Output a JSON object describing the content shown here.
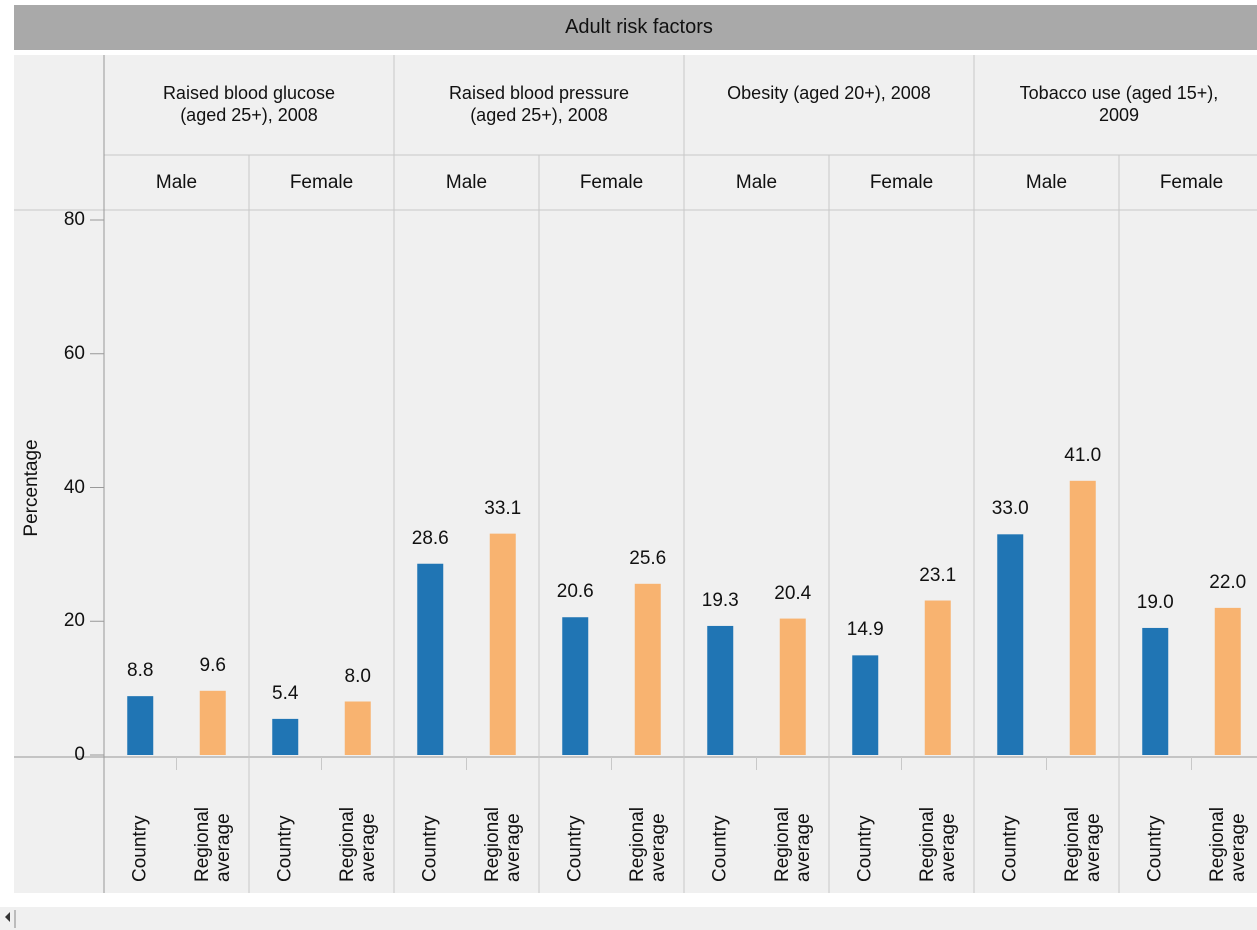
{
  "chart_data": {
    "type": "bar",
    "title": "Adult risk factors",
    "y_label": "Percentage",
    "ylim": [
      0,
      80
    ],
    "yticks": [
      0,
      20,
      40,
      60,
      80
    ],
    "groups": [
      {
        "name": "Raised blood glucose (aged 25+), 2008",
        "subgroups": [
          "Male",
          "Female"
        ]
      },
      {
        "name": "Raised blood pressure (aged 25+), 2008",
        "subgroups": [
          "Male",
          "Female"
        ]
      },
      {
        "name": "Obesity (aged 20+), 2008",
        "subgroups": [
          "Male",
          "Female"
        ]
      },
      {
        "name": "Tobacco use (aged 15+), 2009",
        "subgroups": [
          "Male",
          "Female"
        ]
      }
    ],
    "series": [
      {
        "name": "Country",
        "color": "#2075b4",
        "values": [
          8.8,
          5.4,
          28.6,
          20.6,
          19.3,
          14.9,
          33.0,
          19.0
        ],
        "value_labels": [
          "8.8",
          "5.4",
          "28.6",
          "20.6",
          "19.3",
          "14.9",
          "33.0",
          "19.0"
        ]
      },
      {
        "name": "Regional average",
        "color": "#f8b370",
        "values": [
          9.6,
          8.0,
          33.1,
          25.6,
          20.4,
          23.1,
          41.0,
          22.0
        ],
        "value_labels": [
          "9.6",
          "8.0",
          "33.1",
          "25.6",
          "20.4",
          "23.1",
          "41.0",
          "22.0"
        ]
      }
    ]
  }
}
